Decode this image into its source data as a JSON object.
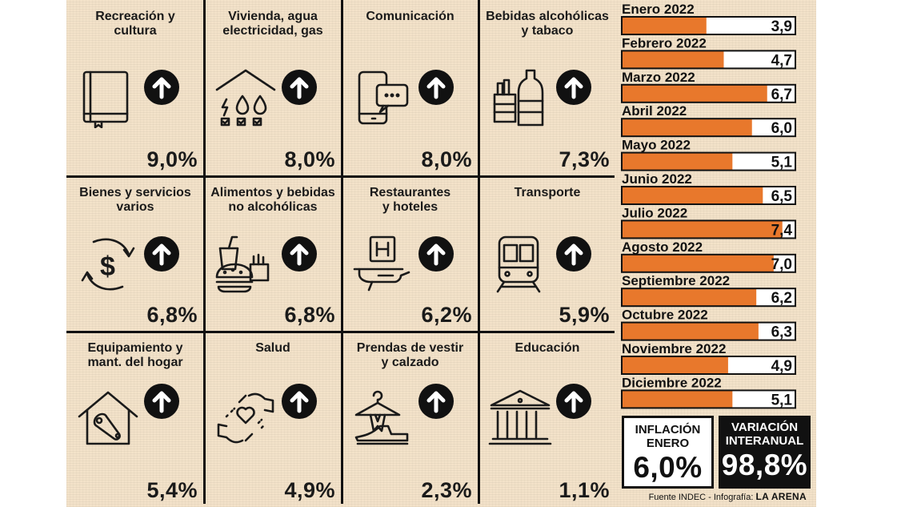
{
  "categories": [
    {
      "title": [
        "Recreación y",
        "cultura"
      ],
      "value": "9,0%",
      "icon": "book-icon"
    },
    {
      "title": [
        "Vivienda, agua",
        "electricidad, gas"
      ],
      "value": "8,0%",
      "icon": "house-utilities-icon"
    },
    {
      "title": [
        "Comunicación"
      ],
      "value": "8,0%",
      "icon": "phone-message-icon"
    },
    {
      "title": [
        "Bebidas alcohólicas",
        "y tabaco"
      ],
      "value": "7,3%",
      "icon": "bottles-cigarettes-icon"
    },
    {
      "title": [
        "Bienes y servicios",
        "varios"
      ],
      "value": "6,8%",
      "icon": "dollar-cycle-icon"
    },
    {
      "title": [
        "Alimentos y bebidas",
        "no alcohólicas"
      ],
      "value": "6,8%",
      "icon": "food-drink-icon"
    },
    {
      "title": [
        "Restaurantes",
        "y hoteles"
      ],
      "value": "6,2%",
      "icon": "hotel-icon"
    },
    {
      "title": [
        "Transporte"
      ],
      "value": "5,9%",
      "icon": "train-icon"
    },
    {
      "title": [
        "Equipamiento y",
        "mant. del hogar"
      ],
      "value": "5,4%",
      "icon": "house-wrench-icon"
    },
    {
      "title": [
        "Salud"
      ],
      "value": "4,9%",
      "icon": "hands-heart-icon"
    },
    {
      "title": [
        "Prendas de vestir",
        "y calzado"
      ],
      "value": "2,3%",
      "icon": "hanger-shoe-icon"
    },
    {
      "title": [
        "Educación"
      ],
      "value": "1,1%",
      "icon": "school-building-icon"
    }
  ],
  "chart_data": {
    "type": "bar",
    "orientation": "horizontal",
    "title": "",
    "categories": [
      "Enero 2022",
      "Febrero 2022",
      "Marzo 2022",
      "Abril 2022",
      "Mayo 2022",
      "Junio 2022",
      "Julio 2022",
      "Agosto 2022",
      "Septiembre 2022",
      "Octubre 2022",
      "Noviembre 2022",
      "Diciembre 2022"
    ],
    "values": [
      3.9,
      4.7,
      6.7,
      6.0,
      5.1,
      6.5,
      7.4,
      7.0,
      6.2,
      6.3,
      4.9,
      5.1
    ],
    "labels": [
      "3,9",
      "4,7",
      "6,7",
      "6,0",
      "5,1",
      "6,5",
      "7,4",
      "7,0",
      "6,2",
      "6,3",
      "4,9",
      "5,1"
    ],
    "xlim": [
      0,
      8
    ],
    "bar_color": "#e8782c"
  },
  "summary": {
    "inflation_label": [
      "INFLACIÓN",
      "ENERO"
    ],
    "inflation_value": "6,0%",
    "interanual_label": [
      "VARIACIÓN",
      "INTERANUAL"
    ],
    "interanual_value": "98,8%"
  },
  "footer": {
    "source": "Fuente INDEC - Infografía:",
    "brand": "LA ARENA"
  },
  "colors": {
    "background": "#f3e2c9",
    "bar": "#e8782c",
    "ink": "#111111"
  }
}
